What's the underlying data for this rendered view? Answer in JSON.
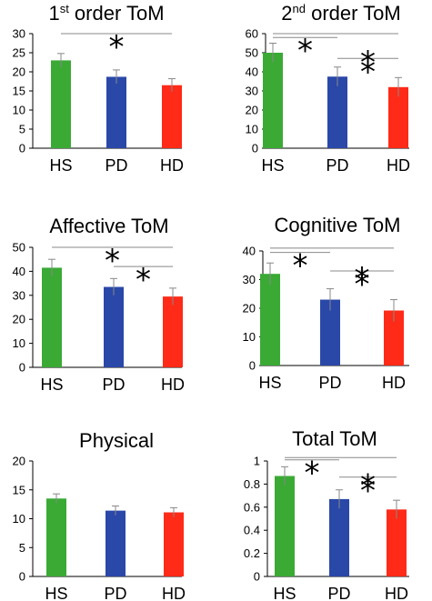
{
  "chart_data": [
    {
      "type": "bar",
      "title": {
        "pre": "1",
        "sup": "st",
        "post": " order ToM"
      },
      "categories": [
        "HS",
        "PD",
        "HD"
      ],
      "values": [
        23,
        18.7,
        16.5
      ],
      "errors": [
        1.8,
        1.8,
        1.7
      ],
      "colors": [
        "#3aaa35",
        "#2a48a8",
        "#ff2a17"
      ],
      "ylim": [
        0,
        30
      ],
      "yticks": [
        "0",
        "5",
        "10",
        "15",
        "20",
        "25",
        "30"
      ],
      "significance": [
        {
          "from": "HS",
          "to": "HD",
          "value": 30,
          "star": "*"
        }
      ]
    },
    {
      "type": "bar",
      "title": {
        "pre": "2",
        "sup": "nd",
        "post": " order ToM"
      },
      "categories": [
        "HS",
        "PD",
        "HD"
      ],
      "values": [
        50,
        37.5,
        32
      ],
      "errors": [
        5,
        5,
        5
      ],
      "colors": [
        "#3aaa35",
        "#2a48a8",
        "#ff2a17"
      ],
      "ylim": [
        0,
        60
      ],
      "yticks": [
        "0",
        "10",
        "20",
        "30",
        "40",
        "50",
        "60"
      ],
      "significance": [
        {
          "from": "HS",
          "to": "HD",
          "value": 60,
          "star": ""
        },
        {
          "from": "HS",
          "to": "PD",
          "value": 58,
          "star": "*"
        },
        {
          "from": "PD",
          "to": "HD",
          "value": 47,
          "star": "*"
        }
      ],
      "extra_stars": [
        {
          "between": [
            "PD",
            "HD"
          ],
          "value": 52,
          "star": "*"
        }
      ]
    },
    {
      "type": "bar",
      "title": {
        "pre": "Affective ToM",
        "sup": "",
        "post": ""
      },
      "categories": [
        "HS",
        "PD",
        "HD"
      ],
      "values": [
        41.5,
        33.5,
        29.5
      ],
      "errors": [
        3.5,
        3.5,
        3.5
      ],
      "colors": [
        "#3aaa35",
        "#2a48a8",
        "#ff2a17"
      ],
      "ylim": [
        0,
        50
      ],
      "yticks": [
        "0",
        "10",
        "20",
        "30",
        "40",
        "50"
      ],
      "significance": [
        {
          "from": "HS",
          "to": "HD",
          "value": 50,
          "star": "*"
        },
        {
          "from": "PD",
          "to": "HD",
          "value": 42,
          "star": "*"
        }
      ]
    },
    {
      "type": "bar",
      "title": {
        "pre": "Cognitive ToM",
        "sup": "",
        "post": ""
      },
      "categories": [
        "HS",
        "PD",
        "HD"
      ],
      "values": [
        32,
        23,
        19.2
      ],
      "errors": [
        3.8,
        3.8,
        3.8
      ],
      "colors": [
        "#3aaa35",
        "#2a48a8",
        "#ff2a17"
      ],
      "ylim": [
        0,
        40
      ],
      "yticks": [
        "0",
        "10",
        "20",
        "30",
        "40"
      ],
      "significance": [
        {
          "from": "HS",
          "to": "HD",
          "value": 41,
          "star": ""
        },
        {
          "from": "HS",
          "to": "PD",
          "value": 39.5,
          "star": "*"
        },
        {
          "from": "PD",
          "to": "HD",
          "value": 33,
          "star": "*"
        }
      ],
      "extra_stars": [
        {
          "between": [
            "PD",
            "HD"
          ],
          "value": 35,
          "star": "*"
        }
      ]
    },
    {
      "type": "bar",
      "title": {
        "pre": "Physical",
        "sup": "",
        "post": ""
      },
      "categories": [
        "HS",
        "PD",
        "HD"
      ],
      "values": [
        13.5,
        11.4,
        11.1
      ],
      "errors": [
        0.8,
        0.8,
        0.8
      ],
      "colors": [
        "#3aaa35",
        "#2a48a8",
        "#ff2a17"
      ],
      "ylim": [
        0,
        20
      ],
      "yticks": [
        "0",
        "5",
        "10",
        "15",
        "20"
      ],
      "significance": []
    },
    {
      "type": "bar",
      "title": {
        "pre": "Total ToM",
        "sup": "",
        "post": ""
      },
      "categories": [
        "HS",
        "PD",
        "HD"
      ],
      "values": [
        0.87,
        0.67,
        0.58
      ],
      "errors": [
        0.08,
        0.08,
        0.08
      ],
      "colors": [
        "#3aaa35",
        "#2a48a8",
        "#ff2a17"
      ],
      "ylim": [
        0,
        1
      ],
      "yticks": [
        "0",
        "0.2",
        "0.4",
        "0.6",
        "0.8",
        "1"
      ],
      "significance": [
        {
          "from": "HS",
          "to": "HD",
          "value": 1.03,
          "star": ""
        },
        {
          "from": "HS",
          "to": "PD",
          "value": 1.01,
          "star": "*"
        },
        {
          "from": "PD",
          "to": "HD",
          "value": 0.86,
          "star": "*"
        }
      ],
      "extra_stars": [
        {
          "between": [
            "PD",
            "HD"
          ],
          "value": 0.9,
          "star": "*"
        }
      ]
    }
  ]
}
